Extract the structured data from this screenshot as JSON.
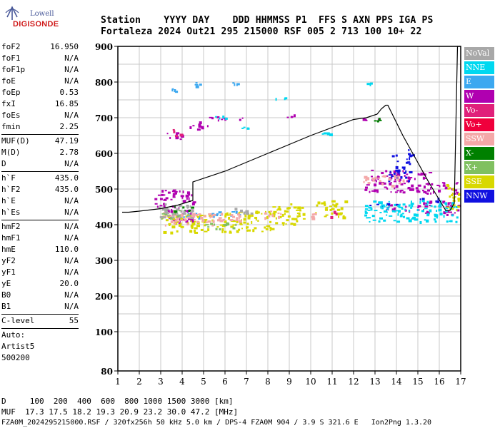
{
  "logo": {
    "line1": "Lowell",
    "line2": "DIGISONDE"
  },
  "header": {
    "row1": "Station    YYYY DAY    DDD HHMMSS P1  FFS S AXN PPS IGA PS",
    "row2": "Fortaleza 2024 Out21 295 215000 RSF 005 2 713 100 10+ 22"
  },
  "params": {
    "g1": [
      [
        "foF2",
        "16.950"
      ],
      [
        "foF1",
        "N/A"
      ],
      [
        "foF1p",
        "N/A"
      ],
      [
        "foE",
        "N/A"
      ],
      [
        "foEp",
        "0.53"
      ],
      [
        "fxI",
        "16.85"
      ],
      [
        "foEs",
        "N/A"
      ],
      [
        "fmin",
        "2.25"
      ]
    ],
    "g2": [
      [
        "MUF(D)",
        "47.19"
      ],
      [
        "M(D)",
        "2.78"
      ],
      [
        "D",
        "N/A"
      ]
    ],
    "g3": [
      [
        "h`F",
        "435.0"
      ],
      [
        "h`F2",
        "435.0"
      ],
      [
        "h`E",
        "N/A"
      ],
      [
        "h`Es",
        "N/A"
      ]
    ],
    "g4": [
      [
        "hmF2",
        "N/A"
      ],
      [
        "hmF1",
        "N/A"
      ],
      [
        "hmE",
        "110.0"
      ],
      [
        "yF2",
        "N/A"
      ],
      [
        "yF1",
        "N/A"
      ],
      [
        "yE",
        "20.0"
      ],
      [
        "B0",
        "N/A"
      ],
      [
        "B1",
        "N/A"
      ]
    ],
    "g5": [
      [
        "C-level",
        "55"
      ]
    ],
    "auto": [
      "Auto:",
      "Artist5",
      "500200"
    ]
  },
  "legend": [
    {
      "label": "NoVal",
      "color": "#a8a8a8"
    },
    {
      "label": "NNE",
      "color": "#00d8f0"
    },
    {
      "label": "E",
      "color": "#3ca8f0"
    },
    {
      "label": "W",
      "color": "#b000b0"
    },
    {
      "label": "Vo-",
      "color": "#e0207a"
    },
    {
      "label": "Vo+",
      "color": "#f0003c"
    },
    {
      "label": "SSW",
      "color": "#f4a8a8"
    },
    {
      "label": "X-",
      "color": "#008000"
    },
    {
      "label": "X+",
      "color": "#80c060"
    },
    {
      "label": "SSE",
      "color": "#d8d800"
    },
    {
      "label": "NNW",
      "color": "#1010e0"
    }
  ],
  "footer": {
    "line1": "D     100  200  400  600  800 1000 1500 3000 [km]",
    "line2": "MUF  17.3 17.5 18.2 19.3 20.9 23.2 30.0 47.2 [MHz]",
    "line3": "FZA0M_2024295215000.RSF / 320fx256h 50 kHz 5.0 km / DPS-4 FZA0M 904 / 3.9 S 321.6 E   Ion2Png 1.3.20"
  },
  "chart_data": {
    "type": "scatter",
    "xlim": [
      1,
      17
    ],
    "ylim": [
      80,
      900
    ],
    "x_ticks": [
      1,
      2,
      3,
      4,
      5,
      6,
      7,
      8,
      9,
      10,
      11,
      12,
      13,
      14,
      15,
      16,
      17
    ],
    "y_ticks": [
      80,
      100,
      200,
      300,
      400,
      500,
      600,
      700,
      800,
      900
    ],
    "grid": true,
    "trace": [
      [
        1.2,
        435
      ],
      [
        1.5,
        435
      ],
      [
        2.0,
        438
      ],
      [
        3.0,
        445
      ],
      [
        3.8,
        455
      ],
      [
        4.5,
        468
      ],
      [
        4.5,
        480
      ],
      [
        4.5,
        520
      ],
      [
        6,
        550
      ],
      [
        8,
        600
      ],
      [
        10,
        650
      ],
      [
        12,
        695
      ],
      [
        12.6,
        700
      ],
      [
        13.1,
        710
      ],
      [
        13.3,
        725
      ],
      [
        13.5,
        735
      ],
      [
        13.6,
        735
      ],
      [
        14.3,
        650
      ],
      [
        15.5,
        520
      ],
      [
        16.1,
        460
      ],
      [
        16.3,
        440
      ],
      [
        16.5,
        440
      ],
      [
        16.7,
        460
      ],
      [
        16.85,
        900
      ],
      [
        17,
        900
      ]
    ],
    "clusters": [
      {
        "color": "#3ca8f0",
        "pts": [
          [
            3.2,
            773,
            3.9,
            790
          ],
          [
            4.5,
            790,
            5.2,
            800
          ],
          [
            6.2,
            795,
            6.8,
            800
          ],
          [
            3.8,
            420,
            5.5,
            435
          ],
          [
            5.5,
            428,
            7,
            440
          ]
        ]
      },
      {
        "color": "#b000b0",
        "pts": [
          [
            3.2,
            640,
            4.3,
            660
          ],
          [
            4.3,
            668,
            5.2,
            690
          ],
          [
            5.0,
            695,
            7,
            705
          ],
          [
            8.4,
            700,
            9.3,
            710
          ],
          [
            12.3,
            690,
            13.2,
            702
          ],
          [
            12.8,
            520,
            15.6,
            555
          ],
          [
            12.4,
            490,
            16.9,
            520
          ],
          [
            2.7,
            440,
            4.5,
            500
          ],
          [
            3.2,
            410,
            4.5,
            440
          ],
          [
            15.2,
            430,
            16.9,
            470
          ],
          [
            13.5,
            440,
            15.0,
            460
          ]
        ]
      },
      {
        "color": "#1010e0",
        "pts": [
          [
            13.6,
            525,
            14.6,
            600
          ],
          [
            14.5,
            590,
            14.8,
            615
          ],
          [
            12.5,
            455,
            14,
            462
          ],
          [
            15,
            468,
            16.5,
            476
          ]
        ]
      },
      {
        "color": "#00d8f0",
        "pts": [
          [
            5.2,
            700,
            6.0,
            710
          ],
          [
            6.7,
            670,
            7.2,
            680
          ],
          [
            8.2,
            755,
            8.8,
            760
          ],
          [
            10.2,
            655,
            11.0,
            662
          ],
          [
            12.4,
            790,
            12.8,
            800
          ],
          [
            12.5,
            410,
            16.8,
            470
          ]
        ]
      },
      {
        "color": "#d8d800",
        "pts": [
          [
            3.0,
            380,
            5.8,
            430
          ],
          [
            5.8,
            380,
            8.2,
            440
          ],
          [
            8.2,
            400,
            9.8,
            460
          ],
          [
            10.2,
            420,
            11.6,
            470
          ],
          [
            16.3,
            440,
            16.9,
            520
          ]
        ]
      },
      {
        "color": "#f4a8a8",
        "pts": [
          [
            3.1,
            400,
            5.5,
            440
          ],
          [
            5.6,
            410,
            6.8,
            440
          ],
          [
            7.8,
            420,
            8.8,
            440
          ],
          [
            10,
            420,
            10.5,
            435
          ],
          [
            12.4,
            510,
            14.3,
            540
          ]
        ]
      },
      {
        "color": "#e0207a",
        "pts": [
          [
            3.5,
            650,
            3.9,
            670
          ],
          [
            10.9,
            420,
            11.3,
            440
          ]
        ]
      },
      {
        "color": "#80c060",
        "pts": [
          [
            3.0,
            420,
            4.0,
            445
          ],
          [
            5.0,
            390,
            6.5,
            410
          ]
        ]
      },
      {
        "color": "#008000",
        "pts": [
          [
            3.6,
            440,
            4.5,
            455
          ],
          [
            12.6,
            690,
            13.2,
            700
          ]
        ]
      },
      {
        "color": "#a8a8a8",
        "pts": [
          [
            2.8,
            420,
            4.5,
            460
          ],
          [
            6.4,
            430,
            7.2,
            450
          ]
        ]
      }
    ]
  }
}
